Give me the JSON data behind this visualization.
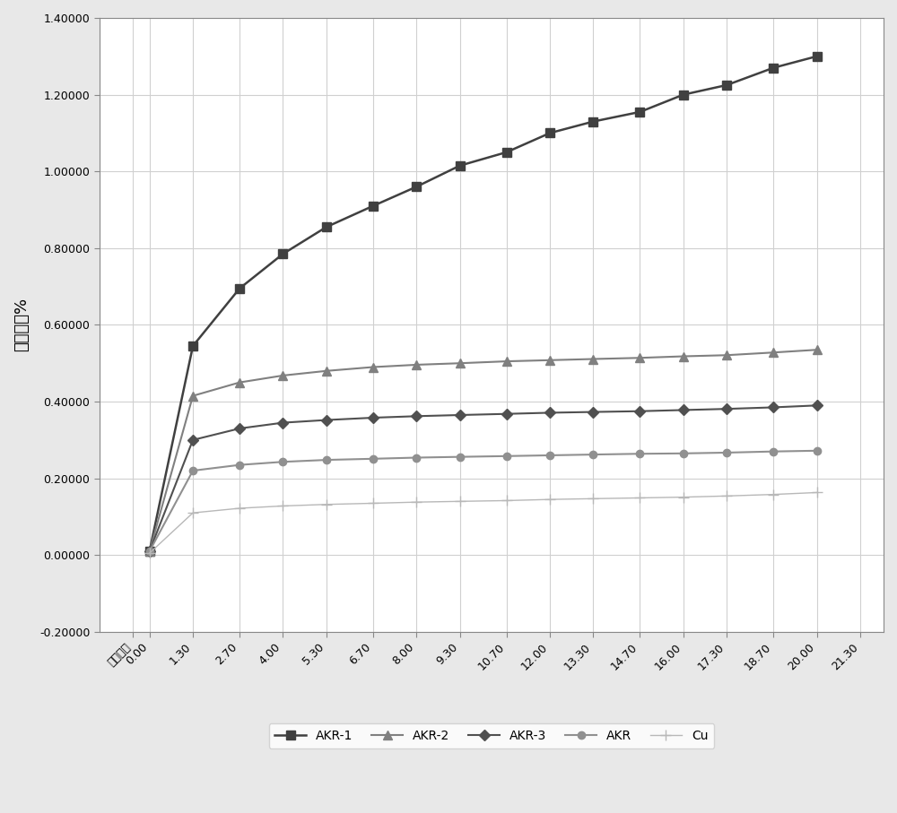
{
  "x_labels": [
    "测试时间",
    "0.00",
    "1.30",
    "2.70",
    "4.00",
    "5.30",
    "6.70",
    "8.00",
    "9.30",
    "10.70",
    "12.00",
    "13.30",
    "14.70",
    "16.00",
    "17.30",
    "18.70",
    "20.00",
    "21.30"
  ],
  "x_positions": [
    -0.5,
    0.0,
    1.3,
    2.7,
    4.0,
    5.3,
    6.7,
    8.0,
    9.3,
    10.7,
    12.0,
    13.3,
    14.7,
    16.0,
    17.3,
    18.7,
    20.0,
    21.3
  ],
  "series": {
    "AKR-1": {
      "x": [
        0.0,
        1.3,
        2.7,
        4.0,
        5.3,
        6.7,
        8.0,
        9.3,
        10.7,
        12.0,
        13.3,
        14.7,
        16.0,
        17.3,
        18.7,
        20.0
      ],
      "y": [
        0.01,
        0.545,
        0.695,
        0.785,
        0.855,
        0.91,
        0.96,
        1.015,
        1.05,
        1.1,
        1.13,
        1.155,
        1.2,
        1.225,
        1.27,
        1.3
      ],
      "color": "#404040",
      "marker": "s",
      "markersize": 7,
      "linewidth": 1.8
    },
    "AKR-2": {
      "x": [
        0.0,
        1.3,
        2.7,
        4.0,
        5.3,
        6.7,
        8.0,
        9.3,
        10.7,
        12.0,
        13.3,
        14.7,
        16.0,
        17.3,
        18.7,
        20.0
      ],
      "y": [
        0.01,
        0.415,
        0.45,
        0.468,
        0.48,
        0.49,
        0.496,
        0.5,
        0.505,
        0.508,
        0.511,
        0.514,
        0.518,
        0.521,
        0.528,
        0.535
      ],
      "color": "#808080",
      "marker": "^",
      "markersize": 7,
      "linewidth": 1.5
    },
    "AKR-3": {
      "x": [
        0.0,
        1.3,
        2.7,
        4.0,
        5.3,
        6.7,
        8.0,
        9.3,
        10.7,
        12.0,
        13.3,
        14.7,
        16.0,
        17.3,
        18.7,
        20.0
      ],
      "y": [
        0.01,
        0.3,
        0.33,
        0.345,
        0.352,
        0.358,
        0.362,
        0.365,
        0.368,
        0.371,
        0.373,
        0.375,
        0.378,
        0.381,
        0.385,
        0.39
      ],
      "color": "#505050",
      "marker": "D",
      "markersize": 6,
      "linewidth": 1.5
    },
    "AKR": {
      "x": [
        0.0,
        1.3,
        2.7,
        4.0,
        5.3,
        6.7,
        8.0,
        9.3,
        10.7,
        12.0,
        13.3,
        14.7,
        16.0,
        17.3,
        18.7,
        20.0
      ],
      "y": [
        0.01,
        0.22,
        0.235,
        0.243,
        0.248,
        0.251,
        0.254,
        0.256,
        0.258,
        0.26,
        0.262,
        0.264,
        0.265,
        0.267,
        0.27,
        0.272
      ],
      "color": "#909090",
      "marker": "o",
      "markersize": 6,
      "linewidth": 1.5
    },
    "Cu": {
      "x": [
        0.0,
        1.3,
        2.7,
        4.0,
        5.3,
        6.7,
        8.0,
        9.3,
        10.7,
        12.0,
        13.3,
        14.7,
        16.0,
        17.3,
        18.7,
        20.0
      ],
      "y": [
        0.005,
        0.11,
        0.122,
        0.128,
        0.132,
        0.135,
        0.138,
        0.14,
        0.142,
        0.145,
        0.147,
        0.149,
        0.151,
        0.154,
        0.158,
        0.163
      ],
      "color": "#b8b8b8",
      "marker": "+",
      "markersize": 8,
      "linewidth": 1.0
    }
  },
  "ylabel": "螬变变形%",
  "ylim": [
    -0.2,
    1.4
  ],
  "yticks": [
    -0.2,
    0.0,
    0.2,
    0.4,
    0.6,
    0.8,
    1.0,
    1.2,
    1.4
  ],
  "ytick_labels": [
    "-0.20000",
    "0.00000",
    "0.20000",
    "0.40000",
    "0.60000",
    "0.80000",
    "1.00000",
    "1.20000",
    "1.40000"
  ],
  "background_color": "#e8e8e8",
  "plot_background": "#ffffff",
  "grid_color": "#d0d0d0",
  "legend_entries": [
    "AKR-1",
    "AKR-2",
    "AKR-3",
    "AKR",
    "Cu"
  ]
}
